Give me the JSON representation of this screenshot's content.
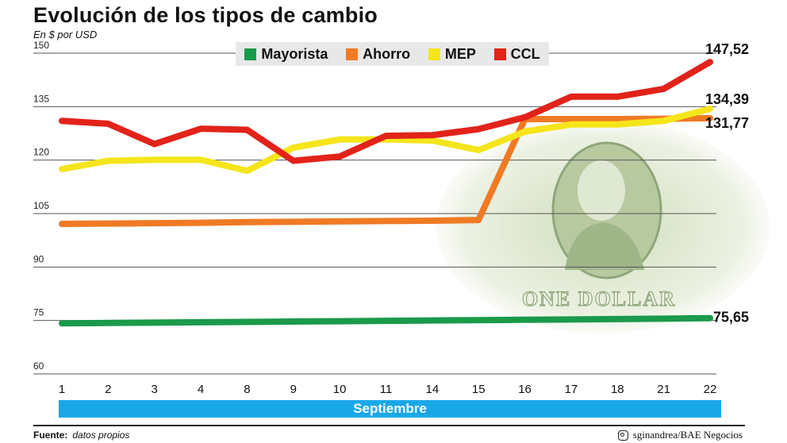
{
  "title": "Evolución de los tipos de cambio",
  "subtitle": "En $ por USD",
  "source_label": "Fuente:",
  "source_value": "datos propios",
  "credit": "sginandrea/BAE Negocios",
  "banknote_text": "ONE DOLLAR",
  "chart_data": {
    "type": "line",
    "xlabel": "Septiembre",
    "categories": [
      "1",
      "2",
      "3",
      "4",
      "8",
      "9",
      "10",
      "11",
      "14",
      "15",
      "16",
      "17",
      "18",
      "21",
      "22"
    ],
    "y_ticks": [
      60,
      75,
      90,
      105,
      120,
      135,
      150
    ],
    "ylim": [
      60,
      150
    ],
    "grid": true,
    "legend_position": "top-center",
    "series": [
      {
        "name": "Mayorista",
        "color": "#1a9a4a",
        "values": [
          74.2,
          74.3,
          74.4,
          74.5,
          74.6,
          74.7,
          74.8,
          74.9,
          75.0,
          75.1,
          75.2,
          75.3,
          75.4,
          75.5,
          75.65
        ],
        "end_label": "75,65"
      },
      {
        "name": "Ahorro",
        "color": "#f07a24",
        "values": [
          102.1,
          102.2,
          102.3,
          102.4,
          102.6,
          102.7,
          102.8,
          102.9,
          103.0,
          103.2,
          131.5,
          131.5,
          131.5,
          131.6,
          131.77
        ],
        "end_label": "131,77"
      },
      {
        "name": "MEP",
        "color": "#f5e51b",
        "values": [
          117.5,
          119.8,
          120.1,
          120.1,
          117.0,
          123.5,
          125.8,
          125.8,
          125.5,
          122.8,
          128.0,
          130.0,
          130.0,
          131.0,
          134.39
        ],
        "end_label": "134,39"
      },
      {
        "name": "CCL",
        "color": "#e2231a",
        "values": [
          131.0,
          130.2,
          124.5,
          128.8,
          128.5,
          119.8,
          121.0,
          126.8,
          127.0,
          128.7,
          132.0,
          137.8,
          137.8,
          140.0,
          147.52
        ],
        "end_label": "147,52"
      }
    ]
  }
}
